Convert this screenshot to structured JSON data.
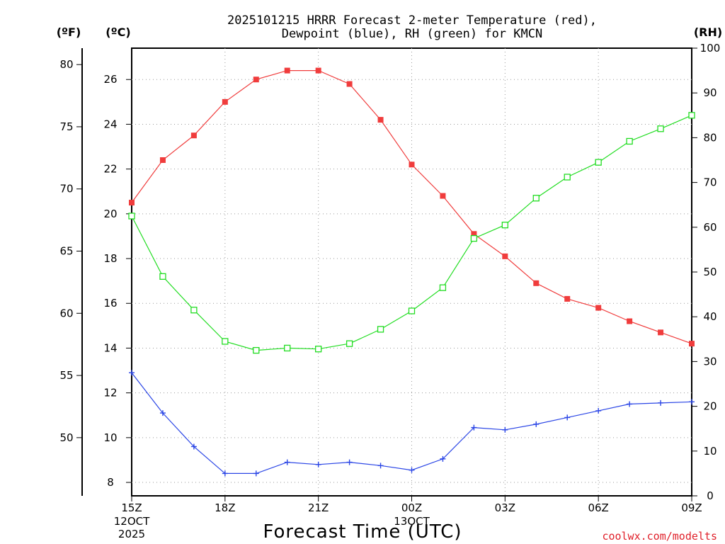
{
  "chart_data": {
    "type": "line",
    "title": "2025101215 HRRR Forecast 2-meter Temperature (red),",
    "subtitle": "Dewpoint (blue), RH (green) for KMCN",
    "xlabel": "Forecast Time (UTC)",
    "credit": "coolwx.com/modelts",
    "units": {
      "fahrenheit": "(ºF)",
      "celsius": "(ºC)",
      "rh": "(RH)"
    },
    "x_ticks": [
      {
        "index": 0,
        "label": "15Z",
        "date": "12OCT",
        "year": "2025"
      },
      {
        "index": 3,
        "label": "18Z"
      },
      {
        "index": 6,
        "label": "21Z"
      },
      {
        "index": 9,
        "label": "00Z",
        "date": "13OCT"
      },
      {
        "index": 12,
        "label": "03Z"
      },
      {
        "index": 15,
        "label": "06Z"
      },
      {
        "index": 18,
        "label": "09Z"
      }
    ],
    "celsius_axis": {
      "range": [
        7.4,
        27.4
      ],
      "ticks": [
        8,
        10,
        12,
        14,
        16,
        18,
        20,
        22,
        24,
        26
      ]
    },
    "fahrenheit_axis": {
      "ticks": [
        50,
        55,
        60,
        65,
        70,
        75,
        80
      ]
    },
    "rh_axis": {
      "range": [
        0,
        100
      ],
      "ticks": [
        0,
        10,
        20,
        30,
        40,
        50,
        60,
        70,
        80,
        90,
        100
      ]
    },
    "series": [
      {
        "name": "Temperature",
        "unit": "C",
        "color": "#f03c3c",
        "marker": "filled-square",
        "values": [
          20.5,
          22.4,
          23.5,
          25.0,
          26.0,
          26.4,
          26.4,
          25.8,
          24.2,
          22.2,
          20.8,
          19.1,
          18.1,
          16.9,
          16.2,
          15.8,
          15.2,
          14.7,
          14.2
        ]
      },
      {
        "name": "Dewpoint",
        "unit": "C",
        "color": "#2b46e6",
        "marker": "plus",
        "values": [
          12.9,
          11.1,
          9.6,
          8.4,
          8.4,
          8.9,
          8.8,
          8.9,
          8.75,
          8.55,
          9.05,
          10.45,
          10.35,
          10.6,
          10.9,
          11.2,
          11.5,
          11.55,
          11.6
        ]
      },
      {
        "name": "RH",
        "unit": "%",
        "color": "#22dd22",
        "marker": "open-square",
        "values": [
          62.5,
          49.0,
          41.5,
          34.5,
          32.5,
          33.0,
          32.8,
          34.0,
          37.2,
          41.3,
          46.5,
          57.5,
          60.5,
          66.5,
          71.2,
          74.5,
          79.2,
          82.0,
          85.0
        ]
      }
    ]
  }
}
